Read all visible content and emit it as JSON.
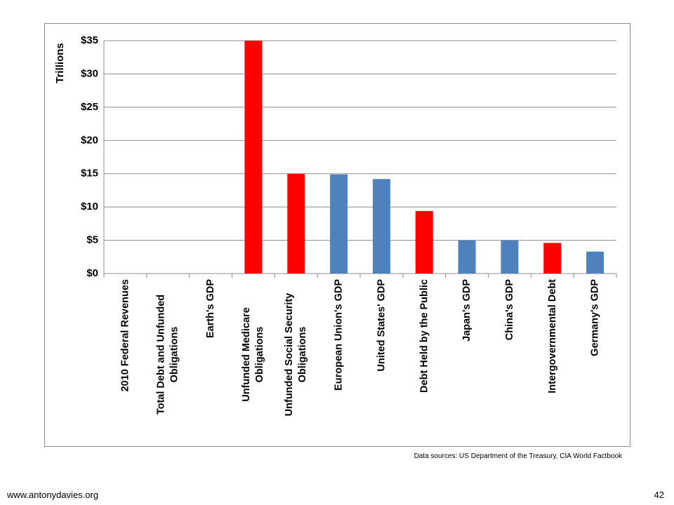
{
  "chart_data": {
    "type": "bar",
    "y_label": "Trillions",
    "categories": [
      "2010 Federal Revenues",
      "Total Debt and Unfunded Obligations",
      "Earth's GDP",
      "Unfunded Medicare Obligations",
      "Unfunded Social Security Obligations",
      "European Union's GDP",
      "United States' GDP",
      "Debt Held by the Public",
      "Japan's GDP",
      "China's GDP",
      "Intergovernmental Debt",
      "Germany's GDP"
    ],
    "values": [
      null,
      null,
      null,
      35,
      15,
      14.9,
      14.2,
      9.4,
      5.0,
      5.0,
      4.6,
      3.3
    ],
    "colors": [
      "#ff0000",
      "#ff0000",
      "#4f81bd",
      "#ff0000",
      "#ff0000",
      "#4f81bd",
      "#4f81bd",
      "#ff0000",
      "#4f81bd",
      "#4f81bd",
      "#ff0000",
      "#4f81bd"
    ],
    "ylim": [
      0,
      35
    ],
    "yticks": [
      {
        "value": 0,
        "label": "$0"
      },
      {
        "value": 5,
        "label": "$5"
      },
      {
        "value": 10,
        "label": "$10"
      },
      {
        "value": 15,
        "label": "$15"
      },
      {
        "value": 20,
        "label": "$20"
      },
      {
        "value": 25,
        "label": "$25"
      },
      {
        "value": 30,
        "label": "$30"
      },
      {
        "value": 35,
        "label": "$35"
      }
    ],
    "grid": true
  },
  "footer": {
    "source": "Data sources: US Department of the Treasury, CIA World Factbook",
    "site": "www.antonydavies.org",
    "page": "42"
  }
}
